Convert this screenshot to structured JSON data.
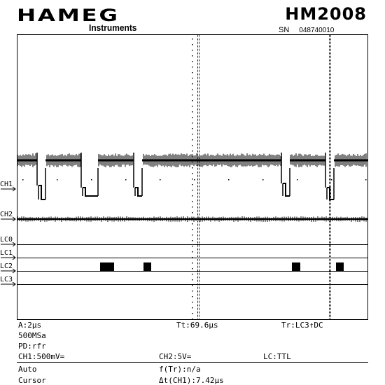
{
  "header": {
    "brand": "HAMEG",
    "brand_sub": "Instruments",
    "model": "HM2008",
    "serial_label": "SN",
    "serial_number": "048740010"
  },
  "channels": {
    "ch1": "CH1",
    "ch2": "CH2",
    "lc0": "LC0",
    "lc1": "LC1",
    "lc2": "LC2",
    "lc3": "LC3"
  },
  "status": {
    "timebase": "A:2µs",
    "sample_rate": "500MSa",
    "peak_detect": "PD:rfr",
    "trigger_time": "Tt:69.6µs",
    "trigger_source": "Tr:LC3↑DC",
    "ch1_setting": "CH1:500mV=",
    "ch2_setting": "CH2:5V=",
    "logic_setting": "LC:TTL",
    "mode": "Auto",
    "freq_readout": "f(Tr):n/a",
    "cursor_label": "Cursor",
    "cursor_readout": "Δt(CH1):7.42µs"
  },
  "colors": {
    "trace": "#000000",
    "background": "#ffffff"
  }
}
